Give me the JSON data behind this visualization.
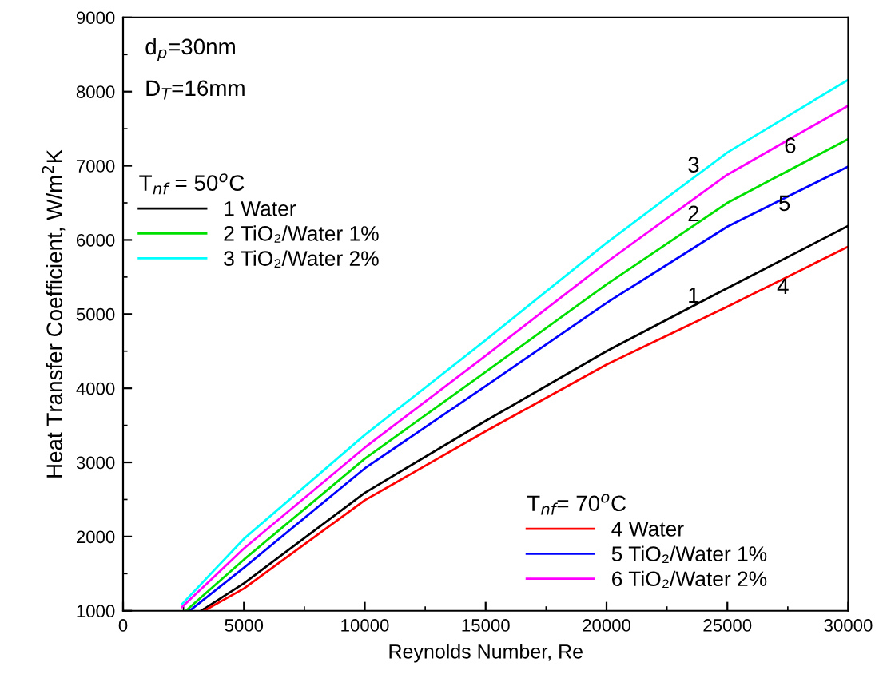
{
  "chart_data": {
    "type": "line",
    "xlabel": "Reynolds Number, Re",
    "ylabel": "Heat Transfer Coefficient, W/m$^{2}$K",
    "xlim": [
      0,
      30000
    ],
    "xticks": [
      0,
      5000,
      10000,
      15000,
      20000,
      25000,
      30000
    ],
    "ylim": [
      1000,
      9000
    ],
    "yticks": [
      1000,
      2000,
      3000,
      4000,
      5000,
      6000,
      7000,
      8000,
      9000
    ],
    "grid": false,
    "legend": "left",
    "marker": "none",
    "line_style": "solid",
    "annotations": [
      "d$_{p}$=30nm",
      "D$_{T}$=16mm",
      "T$_{nf}$ = 50$^{o}$C",
      "T$_{nf}$= 70$^{o}$C",
      {
        "text": "3",
        "x": 23600,
        "y": 6990
      },
      {
        "text": "6",
        "x": 27600,
        "y": 7250
      },
      {
        "text": "2",
        "x": 23600,
        "y": 6330
      },
      {
        "text": "5",
        "x": 27360,
        "y": 6470
      },
      {
        "text": "1",
        "x": 23600,
        "y": 5230
      },
      {
        "text": "4",
        "x": 27300,
        "y": 5350
      }
    ],
    "series": [
      {
        "name": "1 Water",
        "color": "#000000",
        "x": [
          3230,
          5000,
          10000,
          15000,
          20000,
          25000,
          30000
        ],
        "values": [
          1000,
          1370,
          2590,
          3560,
          4500,
          5350,
          6190
        ]
      },
      {
        "name": "2 TiO₂/Water 1%",
        "color": "#00e000",
        "x": [
          2600,
          5000,
          10000,
          15000,
          20000,
          25000,
          30000
        ],
        "values": [
          1000,
          1690,
          3050,
          4220,
          5400,
          6500,
          7360
        ]
      },
      {
        "name": "3 TiO₂/Water 2%",
        "color": "#00ffff",
        "x": [
          2440,
          5000,
          10000,
          15000,
          20000,
          25000,
          30000
        ],
        "values": [
          1090,
          1970,
          3370,
          4650,
          5960,
          7180,
          8160
        ]
      },
      {
        "name": "4 Water",
        "color": "#ff0000",
        "x": [
          3350,
          5000,
          10000,
          15000,
          20000,
          25000,
          30000
        ],
        "values": [
          1000,
          1300,
          2490,
          3420,
          4320,
          5100,
          5910
        ]
      },
      {
        "name": "5 TiO₂/Water 1%",
        "color": "#0000ff",
        "x": [
          2750,
          5000,
          10000,
          15000,
          20000,
          25000,
          30000
        ],
        "values": [
          1000,
          1580,
          2920,
          4030,
          5150,
          6180,
          6990
        ]
      },
      {
        "name": "6 TiO₂/Water 2%",
        "color": "#ff00ff",
        "x": [
          2440,
          5000,
          10000,
          15000,
          20000,
          25000,
          30000
        ],
        "values": [
          1050,
          1840,
          3200,
          4440,
          5700,
          6880,
          7810
        ]
      }
    ]
  }
}
